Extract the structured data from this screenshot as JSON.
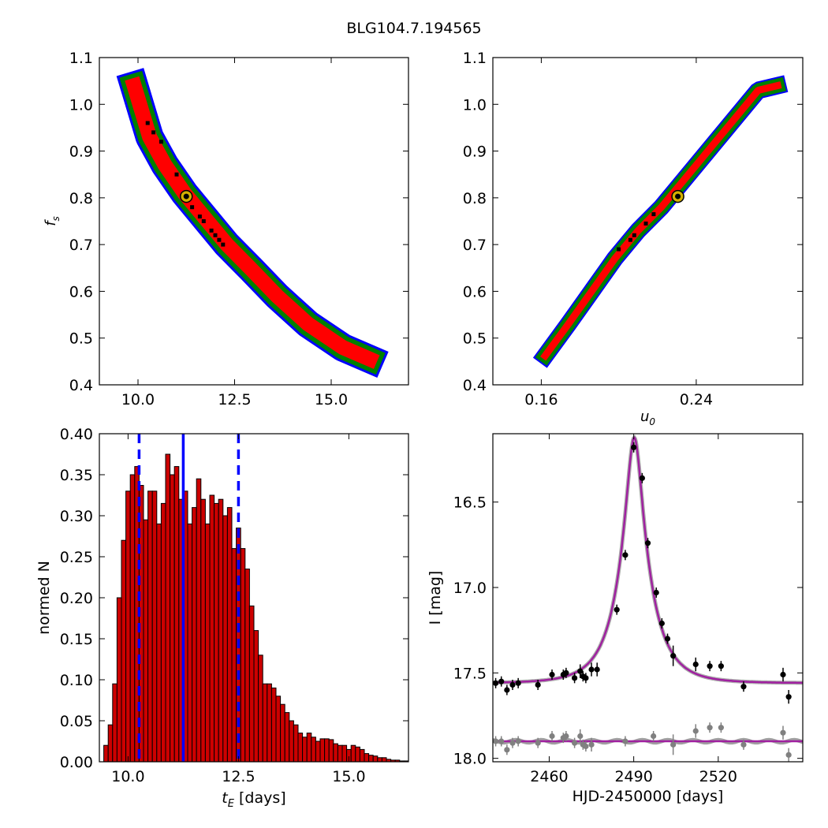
{
  "title": "BLG104.7.194565",
  "chart_data": [
    {
      "id": "fs_vs_tE",
      "type": "heatmap",
      "xlabel": "",
      "ylabel": "f_s",
      "xlim": [
        9.0,
        17.0
      ],
      "ylim": [
        0.4,
        1.1
      ],
      "xticks": [
        "10.0",
        "12.5",
        "15.0"
      ],
      "xtick_values": [
        10.0,
        12.5,
        15.0
      ],
      "yticks": [
        "0.4",
        "0.5",
        "0.6",
        "0.7",
        "0.8",
        "0.9",
        "1.0",
        "1.1"
      ],
      "ytick_values": [
        0.4,
        0.5,
        0.6,
        0.7,
        0.8,
        0.9,
        1.0,
        1.1
      ],
      "confidence_colors": {
        "outer": "#0000ff",
        "middle": "#008000",
        "inner": "#ff0000"
      },
      "ridge": [
        [
          9.9,
          1.04
        ],
        [
          10.3,
          0.93
        ],
        [
          10.7,
          0.87
        ],
        [
          11.2,
          0.81
        ],
        [
          11.8,
          0.75
        ],
        [
          12.3,
          0.7
        ],
        [
          12.9,
          0.65
        ],
        [
          13.6,
          0.59
        ],
        [
          14.4,
          0.53
        ],
        [
          15.3,
          0.48
        ],
        [
          16.0,
          0.455
        ]
      ],
      "best_fit": [
        11.25,
        0.803
      ],
      "samples": [
        [
          10.25,
          0.96
        ],
        [
          10.4,
          0.94
        ],
        [
          10.6,
          0.92
        ],
        [
          11.0,
          0.85
        ],
        [
          11.6,
          0.76
        ],
        [
          11.9,
          0.73
        ],
        [
          12.0,
          0.72
        ],
        [
          12.1,
          0.71
        ],
        [
          12.2,
          0.7
        ],
        [
          11.7,
          0.75
        ],
        [
          11.4,
          0.78
        ]
      ]
    },
    {
      "id": "fs_vs_u0",
      "type": "heatmap",
      "xlabel": "u_0",
      "ylabel": "",
      "xlim": [
        0.135,
        0.295
      ],
      "ylim": [
        0.4,
        1.1
      ],
      "xticks": [
        "0.16",
        "0.24"
      ],
      "xtick_values": [
        0.16,
        0.24
      ],
      "yticks": [
        "0.4",
        "0.5",
        "0.6",
        "0.7",
        "0.8",
        "0.9",
        "1.0",
        "1.1"
      ],
      "ytick_values": [
        0.4,
        0.5,
        0.6,
        0.7,
        0.8,
        0.9,
        1.0,
        1.1
      ],
      "confidence_colors": {
        "outer": "#0000ff",
        "middle": "#008000",
        "inner": "#ff0000"
      },
      "ridge": [
        [
          0.162,
          0.462
        ],
        [
          0.174,
          0.53
        ],
        [
          0.186,
          0.6
        ],
        [
          0.198,
          0.67
        ],
        [
          0.21,
          0.73
        ],
        [
          0.222,
          0.78
        ],
        [
          0.234,
          0.84
        ],
        [
          0.246,
          0.9
        ],
        [
          0.258,
          0.96
        ],
        [
          0.272,
          1.03
        ],
        [
          0.282,
          1.04
        ]
      ],
      "best_fit": [
        0.2305,
        0.803
      ],
      "samples": [
        [
          0.218,
          0.765
        ],
        [
          0.214,
          0.745
        ],
        [
          0.208,
          0.72
        ],
        [
          0.206,
          0.71
        ],
        [
          0.2,
          0.69
        ]
      ]
    },
    {
      "id": "tE_histogram",
      "type": "bar",
      "xlabel": "t_E  [days]",
      "ylabel": "normed N",
      "xlim": [
        9.35,
        16.35
      ],
      "ylim": [
        0.0,
        0.4
      ],
      "xticks": [
        "10.0",
        "12.5",
        "15.0"
      ],
      "xtick_values": [
        10.0,
        12.5,
        15.0
      ],
      "yticks": [
        "0.00",
        "0.05",
        "0.10",
        "0.15",
        "0.20",
        "0.25",
        "0.30",
        "0.35",
        "0.40"
      ],
      "ytick_values": [
        0.0,
        0.05,
        0.1,
        0.15,
        0.2,
        0.25,
        0.3,
        0.35,
        0.4
      ],
      "bin_start": 9.45,
      "bin_width": 0.1,
      "values": [
        0.02,
        0.045,
        0.095,
        0.2,
        0.27,
        0.33,
        0.35,
        0.36,
        0.337,
        0.295,
        0.33,
        0.33,
        0.29,
        0.315,
        0.375,
        0.35,
        0.36,
        0.32,
        0.33,
        0.29,
        0.31,
        0.345,
        0.32,
        0.29,
        0.325,
        0.315,
        0.32,
        0.3,
        0.31,
        0.26,
        0.285,
        0.26,
        0.235,
        0.19,
        0.16,
        0.13,
        0.095,
        0.095,
        0.09,
        0.08,
        0.07,
        0.06,
        0.05,
        0.045,
        0.035,
        0.03,
        0.035,
        0.03,
        0.025,
        0.028,
        0.028,
        0.027,
        0.022,
        0.02,
        0.02,
        0.015,
        0.02,
        0.018,
        0.015,
        0.01,
        0.008,
        0.007,
        0.005,
        0.005,
        0.003,
        0.002,
        0.002,
        0.001,
        0.001,
        0.001
      ],
      "values_display_note": "",
      "bar_color": "#cc0000",
      "median": 11.25,
      "lower": 10.25,
      "upper": 12.5,
      "line_color": "#0000ff"
    },
    {
      "id": "light_curve",
      "type": "scatter",
      "xlabel": "HJD-2450000 [days]",
      "ylabel": "I [mag]",
      "xlim": [
        2440,
        2550
      ],
      "ylim": [
        18.02,
        16.1
      ],
      "xticks": [
        "2460",
        "2490",
        "2520"
      ],
      "xtick_values": [
        2460,
        2490,
        2520
      ],
      "yticks": [
        "16.5",
        "17.0",
        "17.5",
        "18.0"
      ],
      "ytick_values": [
        16.5,
        17.0,
        17.5,
        18.0
      ],
      "model": {
        "t0": 2490.2,
        "u0": 0.23,
        "tE": 11.25,
        "fs": 0.803,
        "baseline": 17.56,
        "color": "#a020a0"
      },
      "secondary_baseline": 17.9,
      "points_primary": [
        [
          2441,
          17.56,
          0.03
        ],
        [
          2443,
          17.55,
          0.03
        ],
        [
          2445,
          17.6,
          0.03
        ],
        [
          2447,
          17.57,
          0.03
        ],
        [
          2449,
          17.56,
          0.03
        ],
        [
          2456,
          17.57,
          0.03
        ],
        [
          2461,
          17.51,
          0.03
        ],
        [
          2465,
          17.51,
          0.03
        ],
        [
          2466,
          17.5,
          0.03
        ],
        [
          2469,
          17.53,
          0.03
        ],
        [
          2471,
          17.49,
          0.04
        ],
        [
          2472,
          17.52,
          0.03
        ],
        [
          2473,
          17.53,
          0.03
        ],
        [
          2475,
          17.48,
          0.04
        ],
        [
          2477,
          17.48,
          0.04
        ],
        [
          2484,
          17.13,
          0.03
        ],
        [
          2487,
          16.81,
          0.03
        ],
        [
          2490,
          16.18,
          0.03
        ],
        [
          2493,
          16.36,
          0.03
        ],
        [
          2495,
          16.74,
          0.03
        ],
        [
          2498,
          17.03,
          0.03
        ],
        [
          2500,
          17.21,
          0.03
        ],
        [
          2502,
          17.3,
          0.03
        ],
        [
          2504,
          17.4,
          0.06
        ],
        [
          2512,
          17.45,
          0.04
        ],
        [
          2517,
          17.46,
          0.03
        ],
        [
          2521,
          17.46,
          0.03
        ],
        [
          2529,
          17.58,
          0.03
        ],
        [
          2543,
          17.51,
          0.04
        ],
        [
          2545,
          17.64,
          0.04
        ]
      ],
      "points_secondary": [
        [
          2441,
          17.9,
          0.03
        ],
        [
          2443,
          17.9,
          0.03
        ],
        [
          2445,
          17.95,
          0.03
        ],
        [
          2447,
          17.91,
          0.03
        ],
        [
          2449,
          17.9,
          0.03
        ],
        [
          2456,
          17.91,
          0.03
        ],
        [
          2461,
          17.87,
          0.03
        ],
        [
          2465,
          17.88,
          0.03
        ],
        [
          2466,
          17.87,
          0.03
        ],
        [
          2469,
          17.91,
          0.03
        ],
        [
          2471,
          17.87,
          0.04
        ],
        [
          2472,
          17.92,
          0.03
        ],
        [
          2473,
          17.93,
          0.03
        ],
        [
          2475,
          17.92,
          0.04
        ],
        [
          2487,
          17.9,
          0.03
        ],
        [
          2497,
          17.87,
          0.03
        ],
        [
          2504,
          17.92,
          0.06
        ],
        [
          2512,
          17.84,
          0.04
        ],
        [
          2517,
          17.82,
          0.03
        ],
        [
          2521,
          17.82,
          0.03
        ],
        [
          2529,
          17.92,
          0.03
        ],
        [
          2543,
          17.85,
          0.04
        ],
        [
          2545,
          17.98,
          0.04
        ]
      ],
      "point_colors": {
        "primary": "#000000",
        "secondary": "#808080"
      }
    }
  ]
}
